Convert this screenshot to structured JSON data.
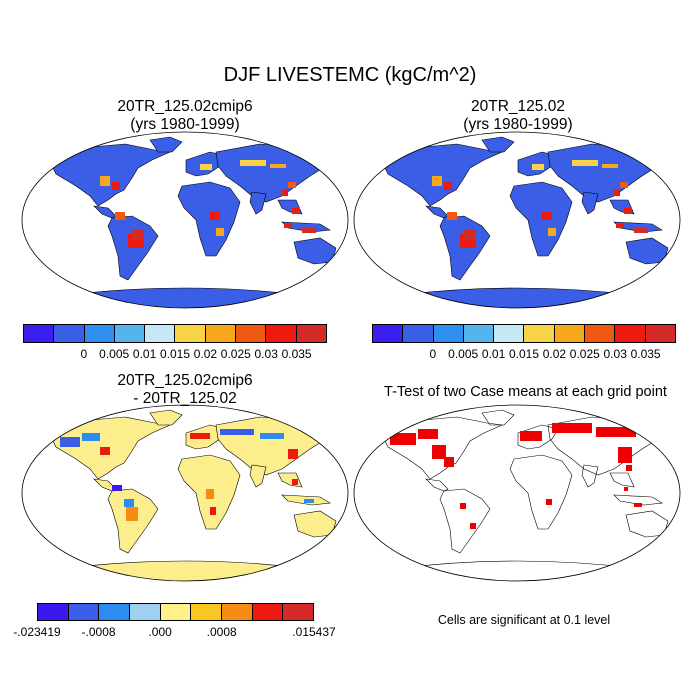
{
  "main_title": "DJF LIVESTEMC (kgC/m^2)",
  "panels": [
    {
      "title_line1": "20TR_125.02cmip6",
      "title_line2": "(yrs 1980-1999)"
    },
    {
      "title_line1": "20TR_125.02",
      "title_line2": "(yrs 1980-1999)"
    },
    {
      "title_line1": "20TR_125.02cmip6",
      "title_line2": "- 20TR_125.02"
    },
    {
      "title_line1": "T-Test of two Case means at each grid point",
      "title_line2": ""
    }
  ],
  "colorbar_abs": {
    "colors": [
      "#3b1ef0",
      "#3a5ee6",
      "#2f8ff0",
      "#56b4ec",
      "#c6e8f4",
      "#f8d34a",
      "#f7a81e",
      "#f05a10",
      "#ee1a10",
      "#d42a28"
    ],
    "labels": [
      "0",
      "0.005",
      "0.01",
      "0.015",
      "0.02",
      "0.025",
      "0.03",
      "0.035"
    ]
  },
  "colorbar_diff": {
    "colors": [
      "#3a18ee",
      "#3b5ee8",
      "#2d8cf0",
      "#9fd0f0",
      "#fdf18c",
      "#f8c822",
      "#f78a12",
      "#ee1a10",
      "#d42a28"
    ],
    "labels": [
      "-.023419",
      "-.0008",
      ".000",
      ".0008",
      ".015437"
    ]
  },
  "ttest_note": "Cells are significant at 0.1 level",
  "map_colors": {
    "ocean": "#ffffff",
    "abs_land": "#3a5ee6",
    "diff_land": "#fcee8c",
    "significant": "#ee0000"
  }
}
